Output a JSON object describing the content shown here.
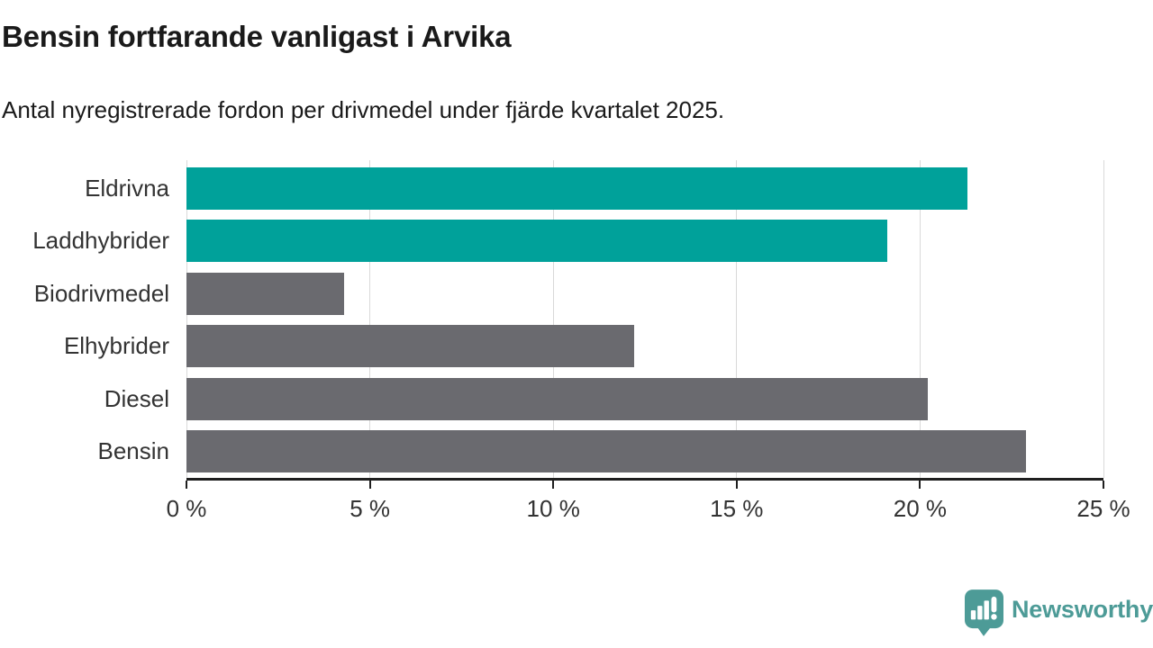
{
  "header": {
    "title": "Bensin fortfarande vanligast i Arvika",
    "subtitle": "Antal nyregistrerade fordon per drivmedel under fjärde kvartalet 2025."
  },
  "chart_data": {
    "type": "bar",
    "orientation": "horizontal",
    "title": "Bensin fortfarande vanligast i Arvika",
    "subtitle": "Antal nyregistrerade fordon per drivmedel under fjärde kvartalet 2025.",
    "categories": [
      "Eldrivna",
      "Laddhybrider",
      "Biodrivmedel",
      "Elhybrider",
      "Diesel",
      "Bensin"
    ],
    "values": [
      21.3,
      19.1,
      4.3,
      12.2,
      20.2,
      22.9
    ],
    "unit": "%",
    "xlim": [
      0,
      25
    ],
    "x_ticks": [
      {
        "value": 0,
        "label": "0 %"
      },
      {
        "value": 5,
        "label": "5 %"
      },
      {
        "value": 10,
        "label": "10 %"
      },
      {
        "value": 15,
        "label": "15 %"
      },
      {
        "value": 20,
        "label": "20 %"
      },
      {
        "value": 25,
        "label": "25 %"
      }
    ],
    "grid": true,
    "legend_position": "none",
    "bar_colors": [
      "#00a19a",
      "#00a19a",
      "#6a6a6f",
      "#6a6a6f",
      "#6a6a6f",
      "#6a6a6f"
    ],
    "colors": {
      "highlight": "#00a19a",
      "default": "#6a6a6f",
      "gridline": "#d9d9d9",
      "axis": "#1f1f1f",
      "label_text": "#333333"
    }
  },
  "footer": {
    "brand": "Newsworthy",
    "brand_color": "#4d9b97"
  }
}
